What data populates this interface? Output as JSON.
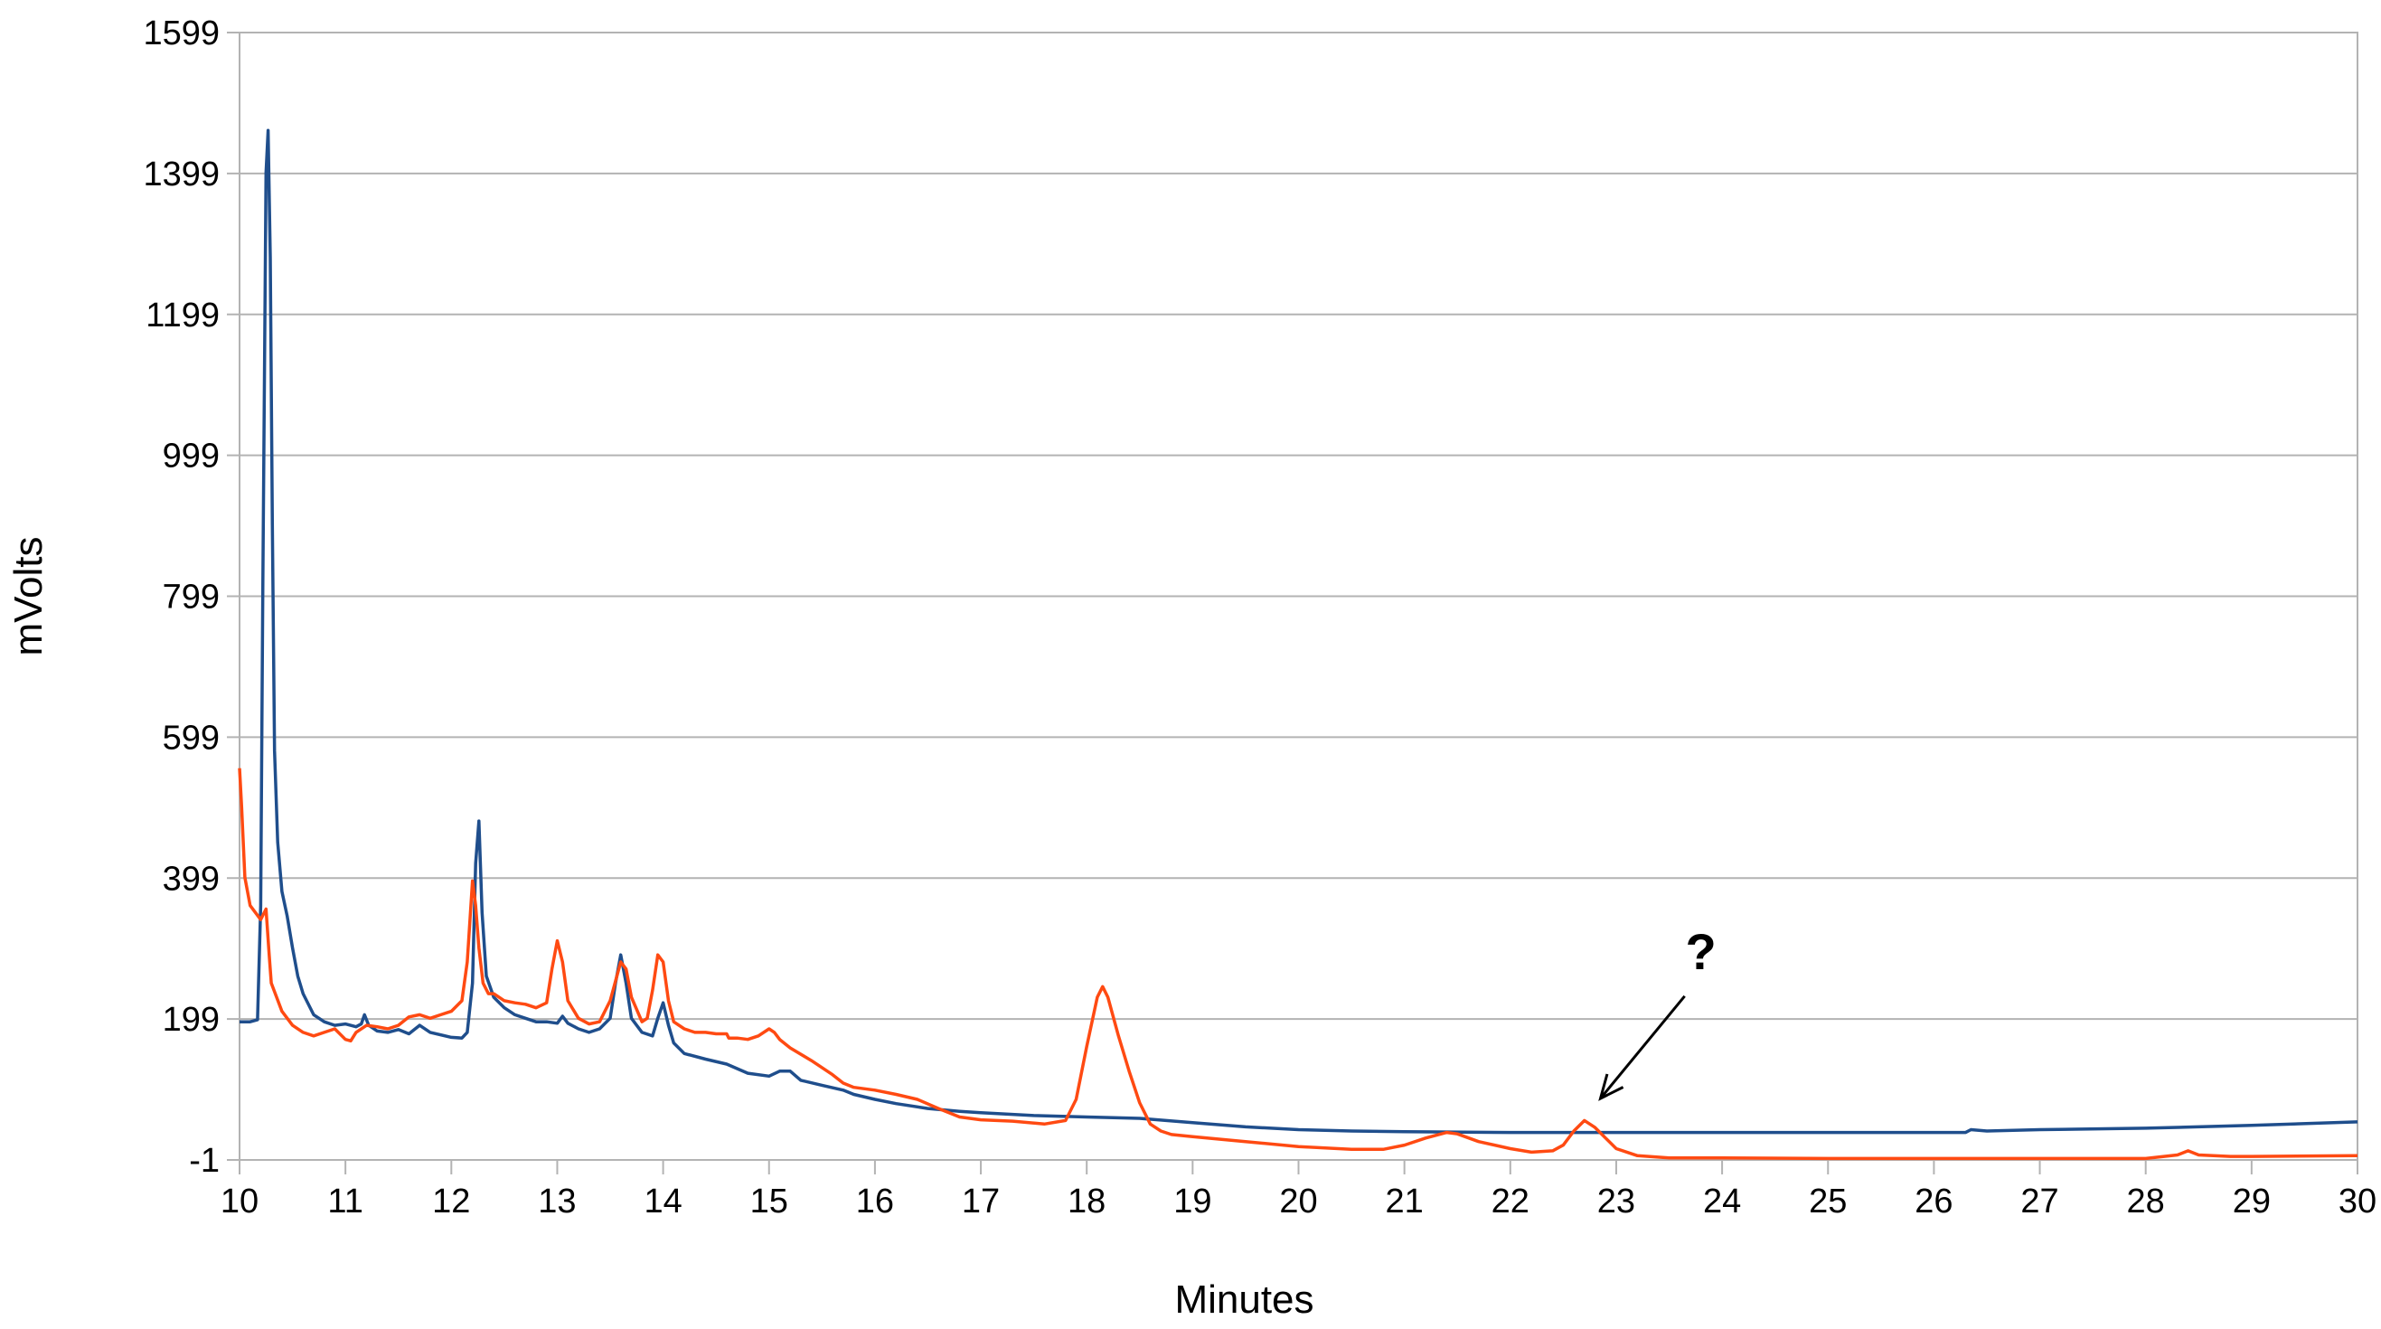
{
  "chart_data": {
    "type": "line",
    "title": "",
    "xlabel": "Minutes",
    "ylabel": "mVolts",
    "xlim": [
      10,
      30
    ],
    "ylim": [
      -1,
      1599
    ],
    "x_ticks": [
      "10",
      "11",
      "12",
      "13",
      "14",
      "15",
      "16",
      "17",
      "18",
      "19",
      "20",
      "21",
      "22",
      "23",
      "24",
      "25",
      "26",
      "27",
      "28",
      "29",
      "30"
    ],
    "y_ticks": [
      "-1",
      "199",
      "399",
      "599",
      "799",
      "999",
      "1199",
      "1399",
      "1599"
    ],
    "grid": true,
    "colors": {
      "series_a": "#1f4e8c",
      "series_b": "#ff4a12",
      "grid": "#b3b3b3",
      "axis": "#b3b3b3"
    },
    "series": [
      {
        "color": "#1f4e8c",
        "points": [
          [
            10.0,
            195
          ],
          [
            10.1,
            195
          ],
          [
            10.17,
            198
          ],
          [
            10.2,
            360
          ],
          [
            10.22,
            820
          ],
          [
            10.25,
            1400
          ],
          [
            10.27,
            1460
          ],
          [
            10.29,
            1280
          ],
          [
            10.31,
            900
          ],
          [
            10.33,
            580
          ],
          [
            10.36,
            450
          ],
          [
            10.4,
            380
          ],
          [
            10.45,
            345
          ],
          [
            10.5,
            300
          ],
          [
            10.55,
            260
          ],
          [
            10.6,
            235
          ],
          [
            10.7,
            205
          ],
          [
            10.8,
            195
          ],
          [
            10.9,
            190
          ],
          [
            11.0,
            192
          ],
          [
            11.1,
            188
          ],
          [
            11.15,
            192
          ],
          [
            11.18,
            205
          ],
          [
            11.22,
            190
          ],
          [
            11.3,
            182
          ],
          [
            11.4,
            180
          ],
          [
            11.5,
            184
          ],
          [
            11.6,
            178
          ],
          [
            11.7,
            190
          ],
          [
            11.8,
            180
          ],
          [
            12.0,
            173
          ],
          [
            12.1,
            172
          ],
          [
            12.15,
            180
          ],
          [
            12.2,
            250
          ],
          [
            12.23,
            420
          ],
          [
            12.26,
            480
          ],
          [
            12.29,
            350
          ],
          [
            12.33,
            260
          ],
          [
            12.4,
            230
          ],
          [
            12.5,
            215
          ],
          [
            12.6,
            205
          ],
          [
            12.7,
            200
          ],
          [
            12.8,
            195
          ],
          [
            12.9,
            195
          ],
          [
            13.0,
            193
          ],
          [
            13.05,
            203
          ],
          [
            13.1,
            193
          ],
          [
            13.2,
            185
          ],
          [
            13.3,
            180
          ],
          [
            13.4,
            185
          ],
          [
            13.5,
            200
          ],
          [
            13.55,
            250
          ],
          [
            13.6,
            290
          ],
          [
            13.65,
            250
          ],
          [
            13.7,
            200
          ],
          [
            13.8,
            180
          ],
          [
            13.9,
            175
          ],
          [
            13.95,
            200
          ],
          [
            14.0,
            222
          ],
          [
            14.05,
            190
          ],
          [
            14.1,
            165
          ],
          [
            14.2,
            150
          ],
          [
            14.4,
            142
          ],
          [
            14.6,
            135
          ],
          [
            14.8,
            122
          ],
          [
            15.0,
            118
          ],
          [
            15.1,
            125
          ],
          [
            15.2,
            125
          ],
          [
            15.3,
            112
          ],
          [
            15.5,
            105
          ],
          [
            15.7,
            98
          ],
          [
            15.8,
            92
          ],
          [
            16.0,
            85
          ],
          [
            16.2,
            79
          ],
          [
            16.5,
            72
          ],
          [
            16.8,
            68
          ],
          [
            17.0,
            66
          ],
          [
            17.5,
            62
          ],
          [
            18.0,
            60
          ],
          [
            18.5,
            58
          ],
          [
            19.0,
            52
          ],
          [
            19.5,
            46
          ],
          [
            20.0,
            42
          ],
          [
            20.5,
            40
          ],
          [
            21.0,
            39
          ],
          [
            22.0,
            38
          ],
          [
            23.0,
            38
          ],
          [
            24.0,
            38
          ],
          [
            25.0,
            38
          ],
          [
            26.0,
            38
          ],
          [
            26.3,
            38
          ],
          [
            26.35,
            42
          ],
          [
            26.5,
            40
          ],
          [
            27.0,
            42
          ],
          [
            28.0,
            44
          ],
          [
            29.0,
            48
          ],
          [
            30.0,
            53
          ]
        ]
      },
      {
        "color": "#ff4a12",
        "points": [
          [
            10.0,
            555
          ],
          [
            10.02,
            500
          ],
          [
            10.05,
            400
          ],
          [
            10.1,
            360
          ],
          [
            10.2,
            340
          ],
          [
            10.25,
            355
          ],
          [
            10.28,
            290
          ],
          [
            10.3,
            250
          ],
          [
            10.4,
            210
          ],
          [
            10.5,
            190
          ],
          [
            10.6,
            180
          ],
          [
            10.7,
            175
          ],
          [
            10.8,
            180
          ],
          [
            10.9,
            185
          ],
          [
            11.0,
            170
          ],
          [
            11.05,
            168
          ],
          [
            11.1,
            180
          ],
          [
            11.2,
            190
          ],
          [
            11.3,
            188
          ],
          [
            11.4,
            185
          ],
          [
            11.5,
            190
          ],
          [
            11.6,
            202
          ],
          [
            11.7,
            205
          ],
          [
            11.8,
            200
          ],
          [
            11.9,
            205
          ],
          [
            12.0,
            210
          ],
          [
            12.1,
            225
          ],
          [
            12.15,
            280
          ],
          [
            12.2,
            395
          ],
          [
            12.23,
            360
          ],
          [
            12.26,
            300
          ],
          [
            12.3,
            250
          ],
          [
            12.35,
            235
          ],
          [
            12.4,
            235
          ],
          [
            12.5,
            225
          ],
          [
            12.6,
            222
          ],
          [
            12.7,
            220
          ],
          [
            12.8,
            215
          ],
          [
            12.9,
            222
          ],
          [
            12.95,
            270
          ],
          [
            13.0,
            310
          ],
          [
            13.05,
            280
          ],
          [
            13.1,
            225
          ],
          [
            13.2,
            200
          ],
          [
            13.3,
            192
          ],
          [
            13.4,
            195
          ],
          [
            13.5,
            225
          ],
          [
            13.6,
            280
          ],
          [
            13.65,
            270
          ],
          [
            13.7,
            230
          ],
          [
            13.8,
            195
          ],
          [
            13.85,
            200
          ],
          [
            13.9,
            240
          ],
          [
            13.95,
            290
          ],
          [
            14.0,
            280
          ],
          [
            14.05,
            225
          ],
          [
            14.1,
            195
          ],
          [
            14.2,
            185
          ],
          [
            14.3,
            180
          ],
          [
            14.4,
            180
          ],
          [
            14.5,
            178
          ],
          [
            14.6,
            178
          ],
          [
            14.62,
            172
          ],
          [
            14.7,
            172
          ],
          [
            14.8,
            170
          ],
          [
            14.9,
            175
          ],
          [
            15.0,
            185
          ],
          [
            15.05,
            180
          ],
          [
            15.1,
            170
          ],
          [
            15.2,
            158
          ],
          [
            15.4,
            140
          ],
          [
            15.6,
            120
          ],
          [
            15.7,
            108
          ],
          [
            15.8,
            102
          ],
          [
            16.0,
            98
          ],
          [
            16.2,
            92
          ],
          [
            16.4,
            85
          ],
          [
            16.6,
            72
          ],
          [
            16.8,
            60
          ],
          [
            17.0,
            56
          ],
          [
            17.3,
            54
          ],
          [
            17.6,
            50
          ],
          [
            17.8,
            55
          ],
          [
            17.9,
            85
          ],
          [
            18.0,
            160
          ],
          [
            18.1,
            230
          ],
          [
            18.15,
            245
          ],
          [
            18.2,
            230
          ],
          [
            18.3,
            175
          ],
          [
            18.4,
            125
          ],
          [
            18.5,
            80
          ],
          [
            18.6,
            50
          ],
          [
            18.7,
            40
          ],
          [
            18.8,
            35
          ],
          [
            19.0,
            32
          ],
          [
            19.5,
            25
          ],
          [
            20.0,
            18
          ],
          [
            20.5,
            14
          ],
          [
            20.8,
            14
          ],
          [
            21.0,
            20
          ],
          [
            21.2,
            30
          ],
          [
            21.4,
            38
          ],
          [
            21.5,
            36
          ],
          [
            21.7,
            25
          ],
          [
            22.0,
            15
          ],
          [
            22.2,
            10
          ],
          [
            22.4,
            12
          ],
          [
            22.5,
            20
          ],
          [
            22.6,
            40
          ],
          [
            22.7,
            55
          ],
          [
            22.8,
            45
          ],
          [
            22.9,
            30
          ],
          [
            23.0,
            15
          ],
          [
            23.2,
            5
          ],
          [
            23.5,
            2
          ],
          [
            24.0,
            2
          ],
          [
            25.0,
            1
          ],
          [
            26.0,
            1
          ],
          [
            27.0,
            1
          ],
          [
            28.0,
            1
          ],
          [
            28.3,
            6
          ],
          [
            28.4,
            12
          ],
          [
            28.5,
            6
          ],
          [
            28.8,
            4
          ],
          [
            29.0,
            4
          ],
          [
            30.0,
            5
          ]
        ]
      }
    ],
    "annotations": [
      {
        "text": "?",
        "target": [
          22.8,
          76
        ],
        "label_at": [
          23.8,
          270
        ]
      }
    ]
  }
}
